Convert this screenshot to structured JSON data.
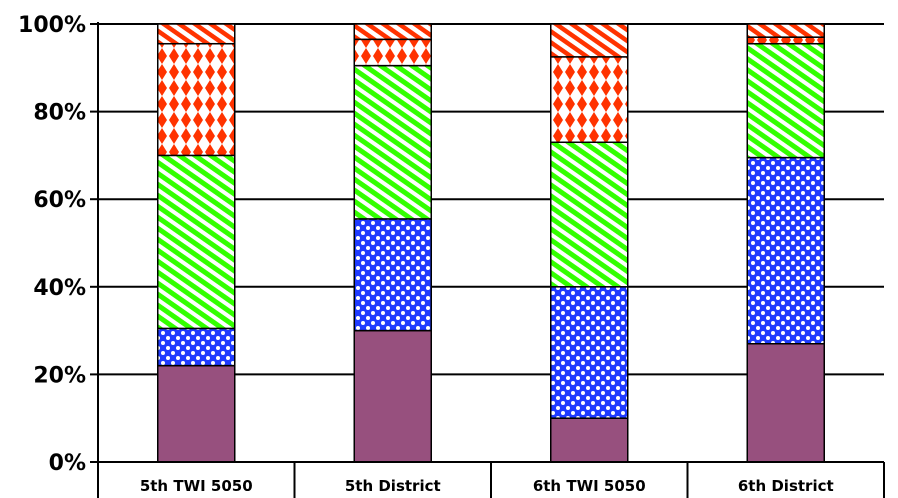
{
  "chart_data": {
    "type": "bar",
    "stacked": true,
    "percent_axis": true,
    "categories": [
      "5th TWI 5050",
      "5th District",
      "6th TWI 5050",
      "6th District"
    ],
    "series": [
      {
        "color": "#97507e",
        "pattern": "solid",
        "values": [
          22,
          30,
          10,
          27
        ]
      },
      {
        "color": "#1f3bff",
        "pattern": "checker",
        "values": [
          8.5,
          25.5,
          30,
          42.5
        ]
      },
      {
        "color": "#33ff00",
        "pattern": "diagonal",
        "values": [
          39.5,
          35,
          33,
          26
        ]
      },
      {
        "color": "#ff3300",
        "pattern": "diamond",
        "values": [
          25.5,
          6,
          19.5,
          1.5
        ]
      },
      {
        "color": "#ff3300",
        "pattern": "diagonal-red",
        "values": [
          4.5,
          3.5,
          7.5,
          3
        ]
      }
    ],
    "yticks": [
      "0%",
      "20%",
      "40%",
      "60%",
      "80%",
      "100%"
    ],
    "ylim": [
      0,
      100
    ],
    "grid": true,
    "legend": "none"
  }
}
